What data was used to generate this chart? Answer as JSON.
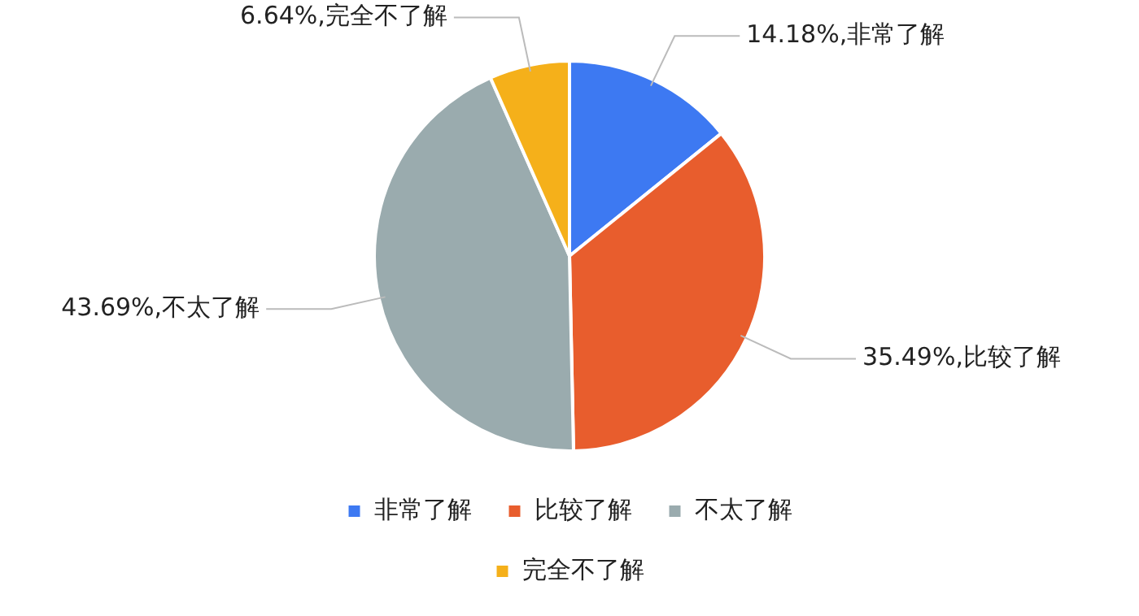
{
  "chart_data": {
    "type": "pie",
    "categories": [
      "非常了解",
      "比较了解",
      "不太了解",
      "完全不了解"
    ],
    "values": [
      14.18,
      35.49,
      43.69,
      6.64
    ],
    "colors": [
      "#3d79f2",
      "#e85d2d",
      "#9aabae",
      "#f5b01a"
    ],
    "value_labels": [
      "14.18%,非常了解",
      "35.49%,比较了解",
      "43.69%,不太了解",
      "6.64%,完全不了解"
    ],
    "legend": "bottom"
  }
}
